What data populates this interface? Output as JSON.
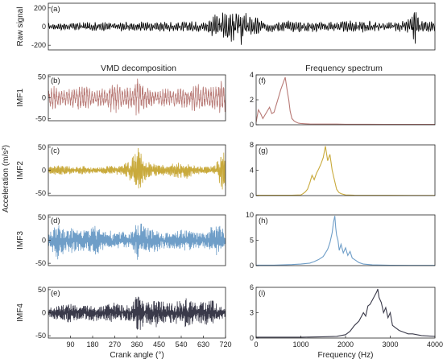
{
  "figure": {
    "left_title": "VMD decomposition",
    "right_title": "Frequency spectrum",
    "shared_ylabel": "Acceleration (m/s²)",
    "left_xlabel": "Crank angle (°)",
    "right_xlabel": "Frequency (Hz)"
  },
  "chart_data": [
    {
      "id": "a",
      "type": "line",
      "panel_label": "(a)",
      "ylabel": "Raw signal",
      "xlim": [
        0,
        720
      ],
      "ylim": [
        -250,
        250
      ],
      "yticks": [
        -200,
        0,
        200
      ],
      "xtick_labels_visible": false,
      "color": "#000000",
      "envelope": [
        [
          0,
          40
        ],
        [
          100,
          50
        ],
        [
          200,
          55
        ],
        [
          290,
          60
        ],
        [
          330,
          200
        ],
        [
          345,
          220
        ],
        [
          360,
          210
        ],
        [
          375,
          140
        ],
        [
          400,
          70
        ],
        [
          540,
          60
        ],
        [
          590,
          70
        ],
        [
          650,
          50
        ],
        [
          675,
          90
        ],
        [
          683,
          260
        ],
        [
          690,
          80
        ],
        [
          720,
          50
        ]
      ],
      "cycles": 200
    },
    {
      "id": "b",
      "type": "line",
      "panel_label": "(b)",
      "ylabel": "IMF1",
      "xlim": [
        0,
        720
      ],
      "ylim": [
        -55,
        55
      ],
      "yticks": [
        -50,
        0,
        50
      ],
      "xtick_labels_visible": false,
      "color": "#b87a76",
      "envelope": [
        [
          0,
          25
        ],
        [
          30,
          30
        ],
        [
          60,
          18
        ],
        [
          100,
          28
        ],
        [
          150,
          35
        ],
        [
          180,
          18
        ],
        [
          230,
          30
        ],
        [
          270,
          38
        ],
        [
          300,
          28
        ],
        [
          340,
          25
        ],
        [
          358,
          50
        ],
        [
          370,
          40
        ],
        [
          400,
          25
        ],
        [
          450,
          20
        ],
        [
          500,
          28
        ],
        [
          560,
          25
        ],
        [
          600,
          35
        ],
        [
          640,
          28
        ],
        [
          680,
          30
        ],
        [
          700,
          42
        ],
        [
          720,
          35
        ]
      ],
      "cycles": 70
    },
    {
      "id": "c",
      "type": "line",
      "panel_label": "(c)",
      "ylabel": "IMF2",
      "xlim": [
        0,
        720
      ],
      "ylim": [
        -55,
        55
      ],
      "yticks": [
        -50,
        0,
        50
      ],
      "xtick_labels_visible": false,
      "color": "#c9aa3c",
      "envelope": [
        [
          0,
          8
        ],
        [
          50,
          12
        ],
        [
          100,
          8
        ],
        [
          150,
          10
        ],
        [
          200,
          6
        ],
        [
          250,
          10
        ],
        [
          300,
          12
        ],
        [
          330,
          28
        ],
        [
          350,
          42
        ],
        [
          365,
          55
        ],
        [
          380,
          35
        ],
        [
          400,
          20
        ],
        [
          440,
          15
        ],
        [
          480,
          12
        ],
        [
          520,
          18
        ],
        [
          560,
          20
        ],
        [
          600,
          10
        ],
        [
          650,
          8
        ],
        [
          680,
          12
        ],
        [
          695,
          40
        ],
        [
          705,
          45
        ],
        [
          720,
          40
        ]
      ],
      "cycles": 180
    },
    {
      "id": "d",
      "type": "line",
      "panel_label": "(d)",
      "ylabel": "IMF3",
      "xlim": [
        0,
        720
      ],
      "ylim": [
        -55,
        55
      ],
      "yticks": [
        -50,
        0,
        50
      ],
      "xtick_labels_visible": false,
      "color": "#6f9ec8",
      "envelope": [
        [
          0,
          18
        ],
        [
          40,
          45
        ],
        [
          70,
          22
        ],
        [
          100,
          30
        ],
        [
          140,
          22
        ],
        [
          180,
          35
        ],
        [
          220,
          25
        ],
        [
          260,
          20
        ],
        [
          300,
          22
        ],
        [
          340,
          25
        ],
        [
          360,
          48
        ],
        [
          375,
          45
        ],
        [
          400,
          28
        ],
        [
          440,
          25
        ],
        [
          480,
          18
        ],
        [
          520,
          22
        ],
        [
          560,
          24
        ],
        [
          600,
          18
        ],
        [
          640,
          20
        ],
        [
          680,
          40
        ],
        [
          700,
          32
        ],
        [
          720,
          20
        ]
      ],
      "cycles": 240
    },
    {
      "id": "e",
      "type": "line",
      "panel_label": "(e)",
      "ylabel": "IMF4",
      "xlim": [
        0,
        720
      ],
      "ylim": [
        -55,
        55
      ],
      "yticks": [
        -50,
        0,
        50
      ],
      "xticks": [
        90,
        180,
        270,
        360,
        450,
        540,
        630,
        720
      ],
      "xlabel": "Crank angle (°)",
      "color": "#3a3a4a",
      "envelope": [
        [
          0,
          12
        ],
        [
          50,
          18
        ],
        [
          90,
          25
        ],
        [
          130,
          15
        ],
        [
          180,
          22
        ],
        [
          220,
          15
        ],
        [
          260,
          25
        ],
        [
          300,
          18
        ],
        [
          340,
          20
        ],
        [
          360,
          45
        ],
        [
          375,
          40
        ],
        [
          400,
          25
        ],
        [
          440,
          35
        ],
        [
          480,
          22
        ],
        [
          520,
          28
        ],
        [
          560,
          35
        ],
        [
          600,
          22
        ],
        [
          640,
          28
        ],
        [
          670,
          30
        ],
        [
          700,
          15
        ],
        [
          720,
          12
        ]
      ],
      "cycles": 300
    },
    {
      "id": "f",
      "type": "line",
      "panel_label": "(f)",
      "xlim": [
        0,
        4000
      ],
      "ylim": [
        0,
        4
      ],
      "yticks": [
        0,
        2,
        4
      ],
      "xtick_labels_visible": false,
      "color": "#b87a76",
      "x": [
        0,
        50,
        100,
        150,
        200,
        250,
        300,
        350,
        400,
        450,
        500,
        550,
        600,
        650,
        700,
        730,
        760,
        800,
        850,
        900,
        950,
        1000,
        1100,
        1200,
        1400,
        1600,
        1800,
        2000,
        2500,
        3000,
        3500,
        4000
      ],
      "y": [
        0.2,
        1.2,
        0.9,
        0.5,
        0.8,
        1.1,
        1.4,
        0.9,
        1.0,
        1.6,
        2.2,
        2.8,
        3.3,
        3.8,
        2.6,
        2.0,
        1.1,
        0.5,
        0.3,
        0.2,
        0.12,
        0.1,
        0.08,
        0.06,
        0.05,
        0.05,
        0.05,
        0.04,
        0.04,
        0.03,
        0.03,
        0.03
      ]
    },
    {
      "id": "g",
      "type": "line",
      "panel_label": "(g)",
      "xlim": [
        0,
        4000
      ],
      "ylim": [
        0,
        8
      ],
      "yticks": [
        0,
        4,
        8
      ],
      "xtick_labels_visible": false,
      "color": "#c9aa3c",
      "x": [
        0,
        400,
        800,
        1000,
        1050,
        1100,
        1150,
        1200,
        1250,
        1300,
        1350,
        1400,
        1450,
        1500,
        1550,
        1600,
        1650,
        1700,
        1750,
        1800,
        1850,
        1900,
        2000,
        2200,
        2600,
        3000,
        3500,
        4000
      ],
      "y": [
        0.05,
        0.05,
        0.05,
        0.1,
        0.3,
        0.6,
        1.0,
        2.0,
        3.2,
        2.5,
        3.5,
        4.2,
        5.0,
        6.0,
        7.8,
        5.5,
        6.5,
        4.0,
        2.5,
        1.0,
        0.5,
        0.3,
        0.1,
        0.05,
        0.04,
        0.04,
        0.03,
        0.03
      ]
    },
    {
      "id": "h",
      "type": "line",
      "panel_label": "(h)",
      "xlim": [
        0,
        4000
      ],
      "ylim": [
        0,
        10
      ],
      "yticks": [
        0,
        5,
        10
      ],
      "xtick_labels_visible": false,
      "color": "#6f9ec8",
      "x": [
        0,
        400,
        800,
        1000,
        1200,
        1300,
        1400,
        1500,
        1550,
        1600,
        1650,
        1700,
        1730,
        1760,
        1780,
        1800,
        1830,
        1860,
        1900,
        1950,
        2000,
        2050,
        2100,
        2150,
        2200,
        2300,
        2400,
        2600,
        3000,
        3500,
        4000
      ],
      "y": [
        0.1,
        0.1,
        0.2,
        0.3,
        0.5,
        0.8,
        1.2,
        1.8,
        2.5,
        3.2,
        4.5,
        6.5,
        8.5,
        9.8,
        7.5,
        6.0,
        5.0,
        3.0,
        4.2,
        2.5,
        3.5,
        2.0,
        2.8,
        1.5,
        1.2,
        0.6,
        0.3,
        0.15,
        0.08,
        0.05,
        0.05
      ]
    },
    {
      "id": "i",
      "type": "line",
      "panel_label": "(i)",
      "xlim": [
        0,
        4000
      ],
      "ylim": [
        0,
        6
      ],
      "yticks": [
        0,
        3,
        6
      ],
      "xticks": [
        0,
        1000,
        2000,
        3000,
        4000
      ],
      "xlabel": "Frequency (Hz)",
      "color": "#3a3a4a",
      "x": [
        0,
        500,
        1000,
        1500,
        1800,
        2000,
        2100,
        2200,
        2300,
        2400,
        2450,
        2500,
        2550,
        2600,
        2650,
        2700,
        2720,
        2750,
        2800,
        2850,
        2900,
        2950,
        3000,
        3050,
        3100,
        3200,
        3300,
        3400,
        3500,
        3700,
        4000
      ],
      "y": [
        0.1,
        0.1,
        0.1,
        0.15,
        0.2,
        0.4,
        0.8,
        1.5,
        2.0,
        3.0,
        2.6,
        3.8,
        4.0,
        4.5,
        5.0,
        5.5,
        5.8,
        4.8,
        4.2,
        3.0,
        3.6,
        2.4,
        3.0,
        1.5,
        1.3,
        0.9,
        0.7,
        0.5,
        0.5,
        0.3,
        0.2
      ]
    }
  ]
}
